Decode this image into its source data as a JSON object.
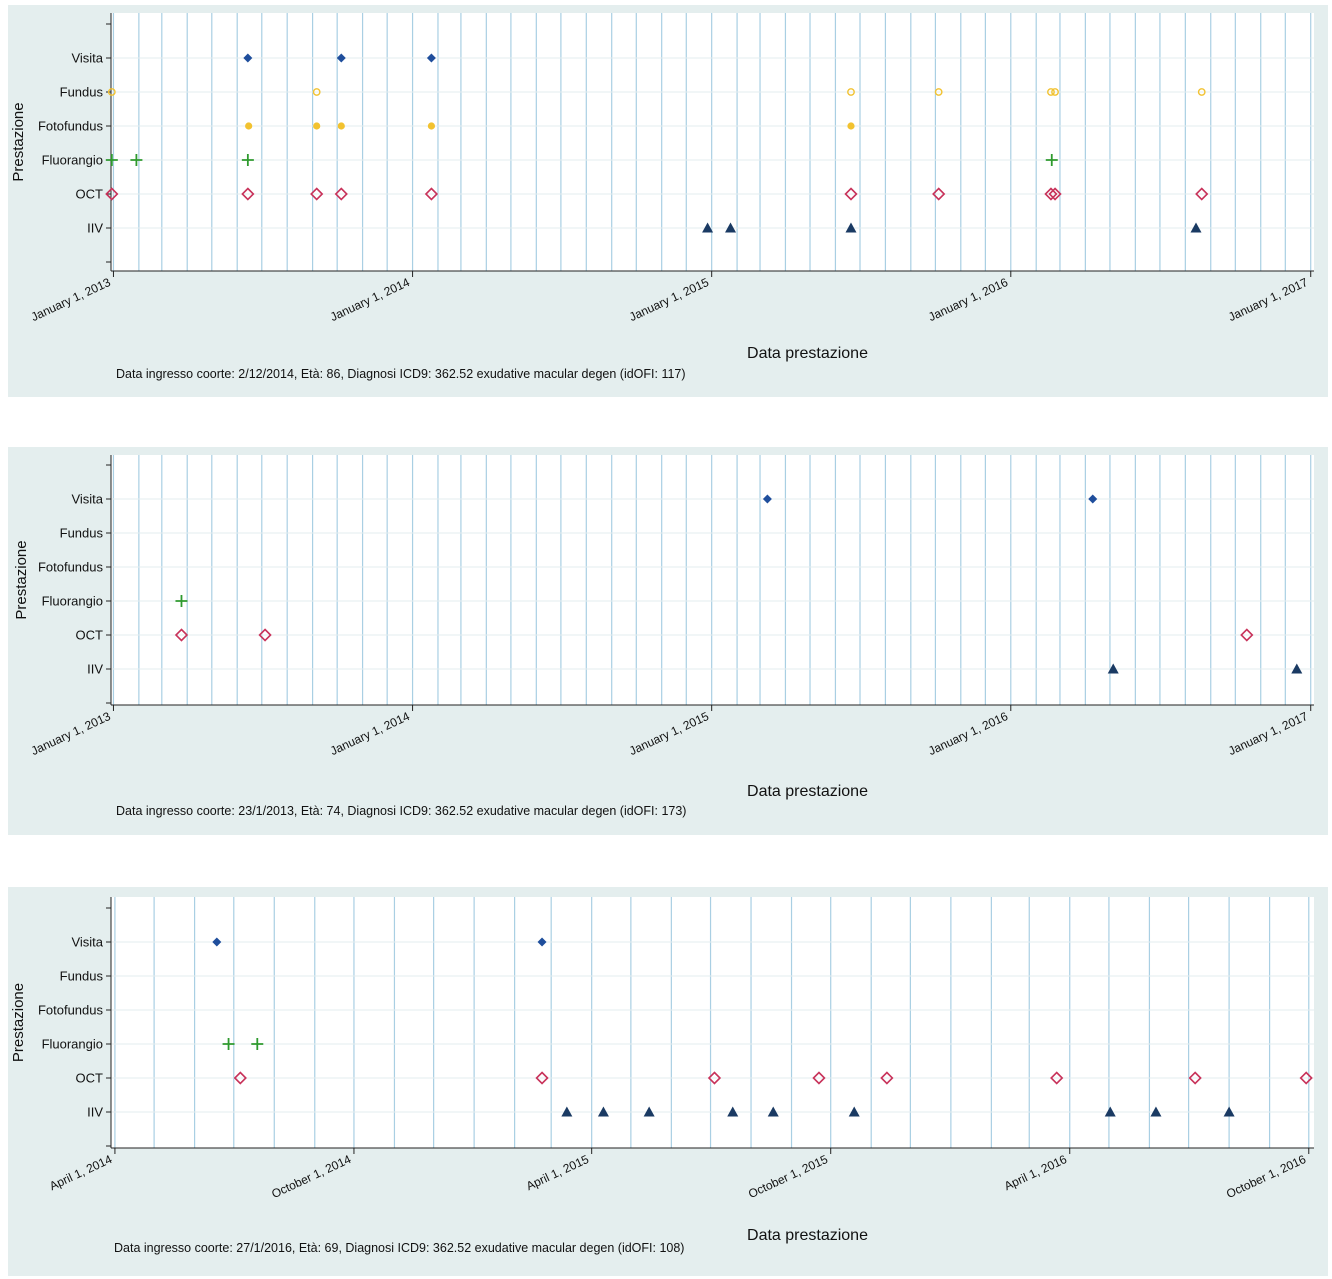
{
  "chart_data": [
    {
      "type": "scatter",
      "xlabel": "Data prestazione",
      "ylabel": "Prestazione",
      "categories": [
        "Visita",
        "Fundus",
        "Fotofundus",
        "Fluorangio",
        "OCT",
        "IIV"
      ],
      "xlim": [
        "2012-12-29",
        "2017-01-05"
      ],
      "xticks": [
        {
          "date": "2013-01-01",
          "label": "January 1, 2013"
        },
        {
          "date": "2014-01-01",
          "label": "January 1, 2014"
        },
        {
          "date": "2015-01-01",
          "label": "January 1, 2015"
        },
        {
          "date": "2016-01-01",
          "label": "January 1, 2016"
        },
        {
          "date": "2017-01-01",
          "label": "January 1, 2017"
        }
      ],
      "month_gridlines": true,
      "note": "Data ingresso coorte: 2/12/2014, Età: 86, Diagnosi ICD9:  362.52 exudative macular degen (idOFI: 117)",
      "series": [
        {
          "name": "Visita",
          "color": "#1f4e9c",
          "marker": "diamond",
          "dates": [
            "2013-06-14",
            "2013-10-06",
            "2014-01-24"
          ]
        },
        {
          "name": "Fundus",
          "color": "#f2c230",
          "marker": "hollow-circle",
          "dates": [
            "2012-12-30",
            "2013-09-06",
            "2015-06-20",
            "2015-10-05",
            "2016-02-19",
            "2016-02-24",
            "2016-08-21"
          ]
        },
        {
          "name": "Fotofundus",
          "color": "#f2c230",
          "marker": "circle",
          "dates": [
            "2013-06-15",
            "2013-09-06",
            "2013-10-06",
            "2014-01-24",
            "2015-06-20"
          ]
        },
        {
          "name": "Fluorangio",
          "color": "#2e9a2e",
          "marker": "plus",
          "dates": [
            "2012-12-30",
            "2013-01-29",
            "2013-06-14",
            "2016-02-20"
          ]
        },
        {
          "name": "OCT",
          "color": "#c8325a",
          "marker": "hollow-diamond",
          "dates": [
            "2012-12-30",
            "2013-06-14",
            "2013-09-06",
            "2013-10-06",
            "2014-01-24",
            "2015-06-20",
            "2015-10-05",
            "2016-02-19",
            "2016-02-24",
            "2016-08-21"
          ]
        },
        {
          "name": "IIV",
          "color": "#1a3a63",
          "marker": "triangle",
          "dates": [
            "2014-12-27",
            "2015-01-24",
            "2015-06-20",
            "2016-08-14"
          ]
        }
      ]
    },
    {
      "type": "scatter",
      "xlabel": "Data prestazione",
      "ylabel": "Prestazione",
      "categories": [
        "Visita",
        "Fundus",
        "Fotofundus",
        "Fluorangio",
        "OCT",
        "IIV"
      ],
      "xlim": [
        "2012-12-29",
        "2017-01-05"
      ],
      "xticks": [
        {
          "date": "2013-01-01",
          "label": "January 1, 2013"
        },
        {
          "date": "2014-01-01",
          "label": "January 1, 2014"
        },
        {
          "date": "2015-01-01",
          "label": "January 1, 2015"
        },
        {
          "date": "2016-01-01",
          "label": "January 1, 2016"
        },
        {
          "date": "2017-01-01",
          "label": "January 1, 2017"
        }
      ],
      "month_gridlines": true,
      "note": "Data ingresso coorte: 23/1/2013, Età: 74, Diagnosi ICD9:  362.52 exudative macular degen (idOFI: 173)",
      "series": [
        {
          "name": "Visita",
          "color": "#1f4e9c",
          "marker": "diamond",
          "dates": [
            "2015-03-10",
            "2016-04-10"
          ]
        },
        {
          "name": "Fluorangio",
          "color": "#2e9a2e",
          "marker": "plus",
          "dates": [
            "2013-03-25"
          ]
        },
        {
          "name": "OCT",
          "color": "#c8325a",
          "marker": "hollow-diamond",
          "dates": [
            "2013-03-25",
            "2013-07-05",
            "2016-10-15"
          ]
        },
        {
          "name": "IIV",
          "color": "#1a3a63",
          "marker": "triangle",
          "dates": [
            "2016-05-05",
            "2016-12-15"
          ]
        }
      ]
    },
    {
      "type": "scatter",
      "xlabel": "Data prestazione",
      "ylabel": "Prestazione",
      "categories": [
        "Visita",
        "Fundus",
        "Fotofundus",
        "Fluorangio",
        "OCT",
        "IIV"
      ],
      "xlim": [
        "2014-03-29",
        "2016-10-05"
      ],
      "xticks": [
        {
          "date": "2014-04-01",
          "label": "April 1, 2014"
        },
        {
          "date": "2014-10-01",
          "label": "October 1, 2014"
        },
        {
          "date": "2015-04-01",
          "label": "April 1, 2015"
        },
        {
          "date": "2015-10-01",
          "label": "October 1, 2015"
        },
        {
          "date": "2016-04-01",
          "label": "April 1, 2016"
        },
        {
          "date": "2016-10-01",
          "label": "October 1, 2016"
        }
      ],
      "month_gridlines": true,
      "note": "Data ingresso coorte: 27/1/2016, Età: 69, Diagnosi ICD9:  362.52 exudative macular degen (idOFI: 108)",
      "series": [
        {
          "name": "Visita",
          "color": "#1f4e9c",
          "marker": "diamond",
          "dates": [
            "2014-06-18",
            "2015-02-22"
          ]
        },
        {
          "name": "Fluorangio",
          "color": "#2e9a2e",
          "marker": "plus",
          "dates": [
            "2014-06-27",
            "2014-07-19"
          ]
        },
        {
          "name": "OCT",
          "color": "#c8325a",
          "marker": "hollow-diamond",
          "dates": [
            "2014-07-06",
            "2015-02-22",
            "2015-07-04",
            "2015-09-22",
            "2015-11-13",
            "2016-03-22",
            "2016-07-06",
            "2016-09-29"
          ]
        },
        {
          "name": "IIV",
          "color": "#1a3a63",
          "marker": "triangle",
          "dates": [
            "2015-03-13",
            "2015-04-10",
            "2015-05-15",
            "2015-07-18",
            "2015-08-18",
            "2015-10-19",
            "2016-05-02",
            "2016-06-06",
            "2016-08-01"
          ]
        }
      ]
    }
  ]
}
